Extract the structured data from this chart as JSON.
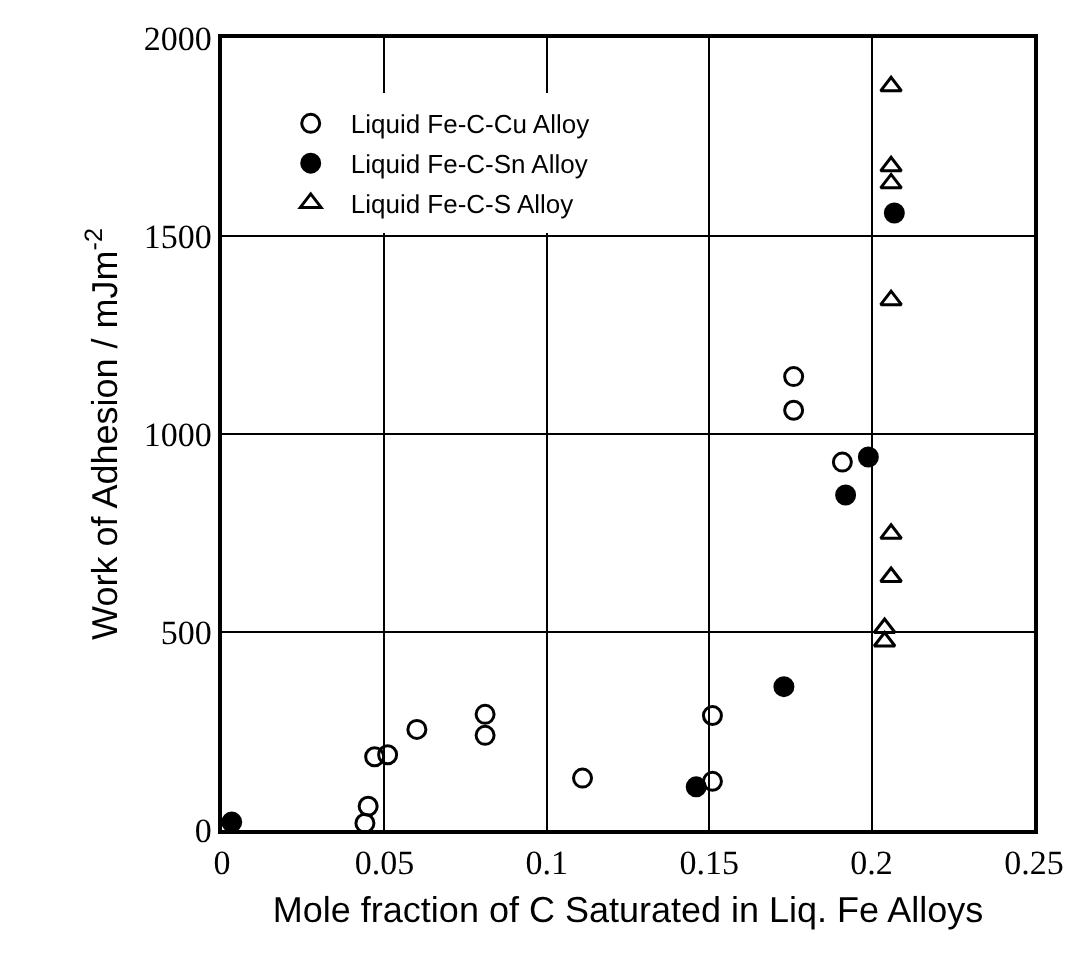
{
  "chart_data": {
    "type": "scatter",
    "xlabel": "Mole fraction of C Saturated in Liq. Fe Alloys",
    "ylabel": "Work of Adhesion / mJm$^{-2}$",
    "xlim": [
      0,
      0.25
    ],
    "xticks": [
      0,
      0.05,
      0.1,
      0.15,
      0.2,
      0.25
    ],
    "ylim": [
      0,
      2000
    ],
    "yticks": [
      0,
      500,
      1000,
      1500,
      2000
    ],
    "grid": true,
    "legend": "top left",
    "series": [
      {
        "name": "Liquid Fe-C-Cu Alloy",
        "color": "#000000",
        "marker": "circle-open",
        "x": [
          0.045,
          0.044,
          0.047,
          0.051,
          0.06,
          0.081,
          0.081,
          0.111,
          0.151,
          0.151,
          0.176,
          0.176,
          0.191
        ],
        "values": [
          60,
          17,
          185,
          190,
          254,
          292,
          239,
          131,
          289,
          123,
          1145,
          1060,
          929
        ]
      },
      {
        "name": "Liquid Fe-C-Sn Alloy",
        "color": "#000000",
        "marker": "circle",
        "x": [
          0.003,
          0.146,
          0.173,
          0.199,
          0.192,
          0.207
        ],
        "values": [
          20,
          109,
          362,
          942,
          846,
          1558
        ]
      },
      {
        "name": "Liquid Fe-C-S Alloy",
        "color": "#000000",
        "marker": "triangle-open",
        "x": [
          0.206,
          0.206,
          0.206,
          0.206,
          0.206,
          0.206,
          0.204,
          0.204
        ],
        "values": [
          1878,
          1676,
          1633,
          1338,
          748,
          639,
          510,
          476
        ]
      }
    ]
  }
}
